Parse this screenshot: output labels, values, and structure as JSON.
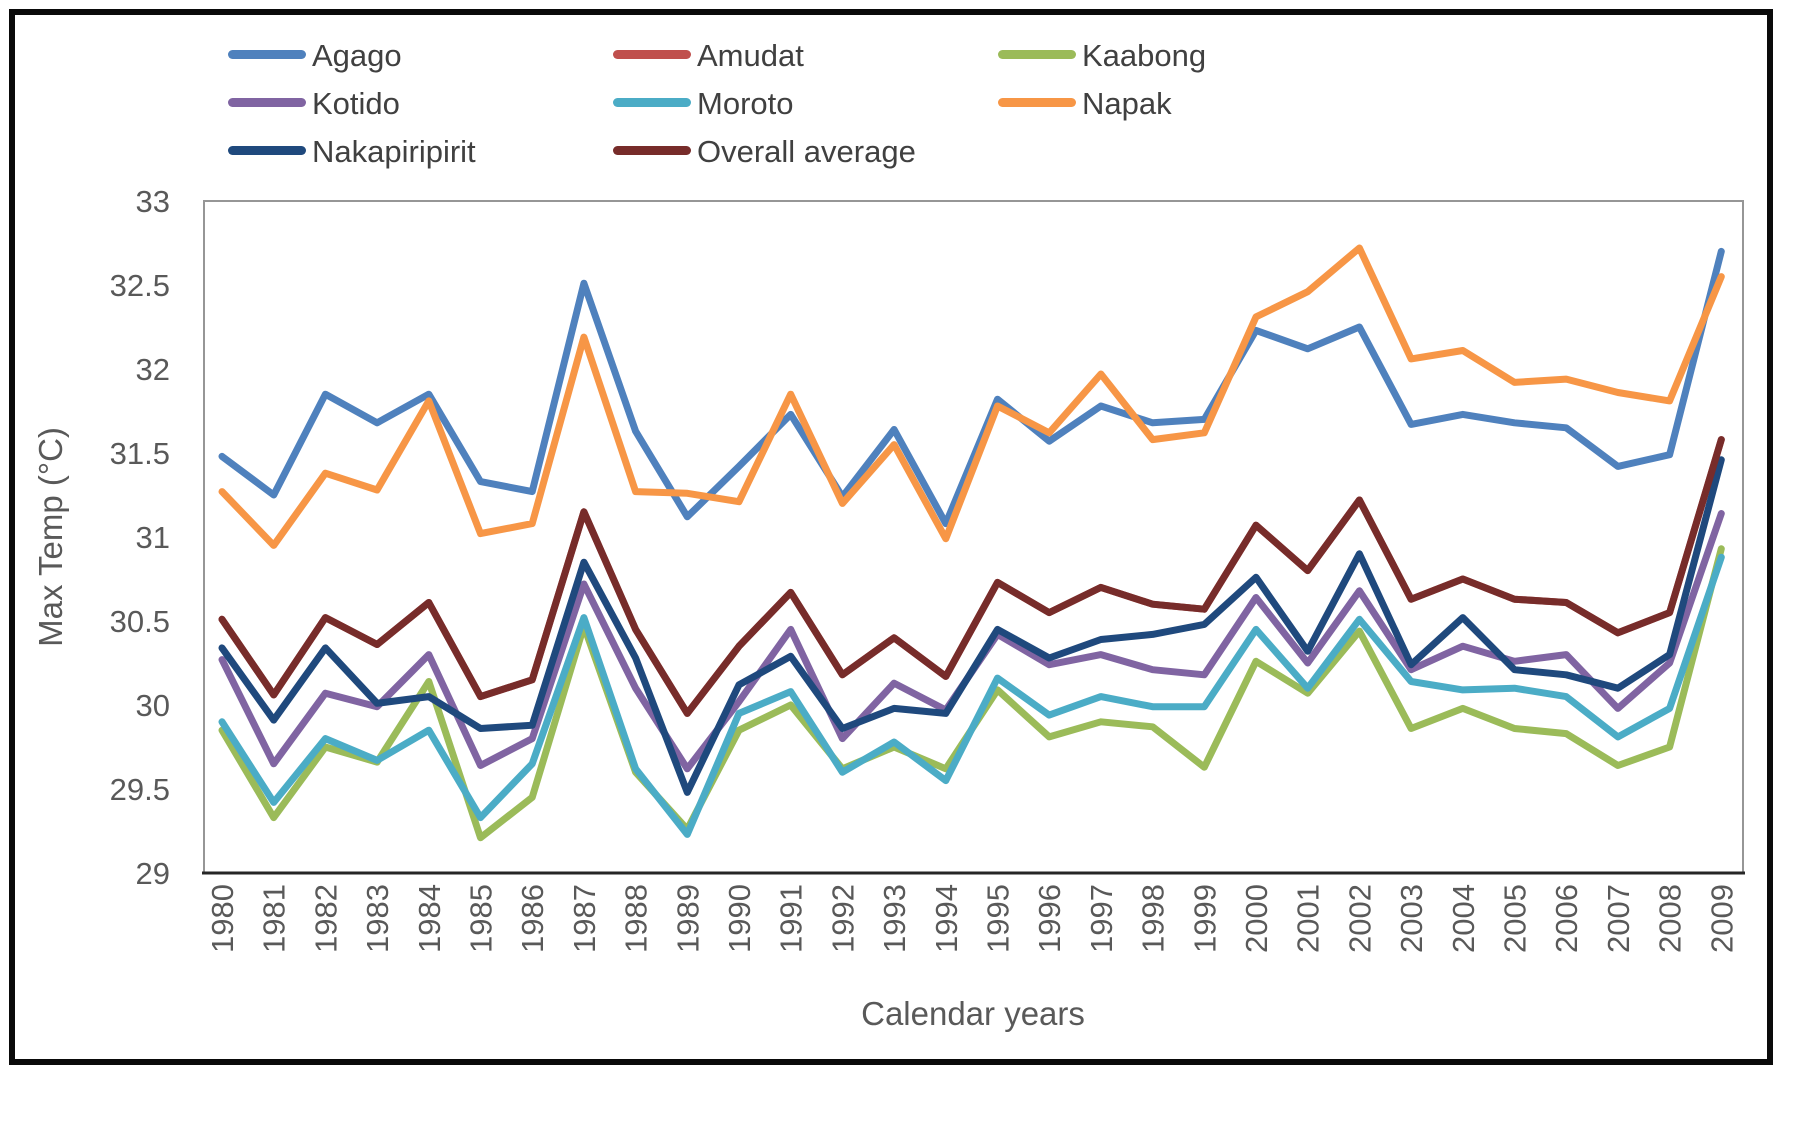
{
  "chart_data": {
    "type": "line",
    "title": "",
    "xlabel": "Calendar years",
    "ylabel": "Max Temp (°C)",
    "ylim": [
      29,
      33
    ],
    "y_tick_step": 0.5,
    "y_ticks": [
      "33",
      "32.5",
      "32",
      "31.5",
      "31",
      "30.5",
      "30",
      "29.5",
      "29"
    ],
    "grid": false,
    "legend_position": "top",
    "categories": [
      "1980",
      "1981",
      "1982",
      "1983",
      "1984",
      "1985",
      "1986",
      "1987",
      "1988",
      "1989",
      "1990",
      "1991",
      "1992",
      "1993",
      "1994",
      "1995",
      "1996",
      "1997",
      "1998",
      "1999",
      "2000",
      "2001",
      "2002",
      "2003",
      "2004",
      "2005",
      "2006",
      "2007",
      "2008",
      "2009"
    ],
    "series": [
      {
        "name": "Agago",
        "color": "#4F81BD",
        "values": [
          31.48,
          31.25,
          31.85,
          31.68,
          31.85,
          31.33,
          31.27,
          32.51,
          31.63,
          31.12,
          31.42,
          31.73,
          31.24,
          31.64,
          31.08,
          31.82,
          31.57,
          31.78,
          31.68,
          31.7,
          32.23,
          32.12,
          32.25,
          31.67,
          31.73,
          31.68,
          31.65,
          31.42,
          31.49,
          32.7
        ]
      },
      {
        "name": "Amudat",
        "color": "#C0504D",
        "values": [
          30.51,
          30.06,
          30.52,
          30.36,
          30.61,
          30.05,
          30.15,
          31.15,
          30.45,
          29.95,
          30.35,
          30.67,
          30.18,
          30.4,
          30.17,
          30.73,
          30.55,
          30.7,
          30.6,
          30.57,
          31.07,
          30.8,
          31.22,
          30.63,
          30.75,
          30.63,
          30.61,
          30.43,
          30.55,
          31.58
        ]
      },
      {
        "name": "Kaabong",
        "color": "#9BBB59",
        "values": [
          29.85,
          29.33,
          29.75,
          29.66,
          30.14,
          29.21,
          29.45,
          30.47,
          29.6,
          29.26,
          29.85,
          30.0,
          29.62,
          29.75,
          29.62,
          30.09,
          29.81,
          29.9,
          29.87,
          29.63,
          30.26,
          30.07,
          30.44,
          29.86,
          29.98,
          29.86,
          29.83,
          29.64,
          29.75,
          30.93
        ]
      },
      {
        "name": "Kotido",
        "color": "#8064A2",
        "values": [
          30.27,
          29.65,
          30.07,
          29.99,
          30.3,
          29.64,
          29.8,
          30.72,
          30.1,
          29.62,
          30.02,
          30.45,
          29.8,
          30.13,
          29.97,
          30.42,
          30.24,
          30.3,
          30.21,
          30.18,
          30.64,
          30.25,
          30.68,
          30.21,
          30.35,
          30.26,
          30.3,
          29.98,
          30.25,
          31.14
        ]
      },
      {
        "name": "Moroto",
        "color": "#4BACC6",
        "values": [
          29.9,
          29.42,
          29.8,
          29.67,
          29.85,
          29.33,
          29.65,
          30.52,
          29.62,
          29.23,
          29.95,
          30.08,
          29.6,
          29.78,
          29.55,
          30.16,
          29.94,
          30.05,
          29.99,
          29.99,
          30.45,
          30.1,
          30.51,
          30.14,
          30.09,
          30.1,
          30.05,
          29.81,
          29.98,
          30.88
        ]
      },
      {
        "name": "Napak",
        "color": "#F79646",
        "values": [
          31.27,
          30.95,
          31.38,
          31.28,
          31.81,
          31.02,
          31.08,
          32.19,
          31.27,
          31.26,
          31.21,
          31.85,
          31.2,
          31.55,
          30.99,
          31.78,
          31.62,
          31.97,
          31.58,
          31.62,
          32.31,
          32.46,
          32.72,
          32.06,
          32.11,
          31.92,
          31.94,
          31.86,
          31.81,
          32.55
        ]
      },
      {
        "name": "Nakapiripirit",
        "color": "#1F497D",
        "values": [
          30.34,
          29.91,
          30.34,
          30.01,
          30.05,
          29.86,
          29.88,
          30.85,
          30.28,
          29.48,
          30.12,
          30.29,
          29.86,
          29.98,
          29.95,
          30.45,
          30.28,
          30.39,
          30.42,
          30.48,
          30.76,
          30.32,
          30.9,
          30.24,
          30.52,
          30.21,
          30.18,
          30.1,
          30.3,
          31.46
        ]
      },
      {
        "name": "Overall average",
        "color": "#772C2A",
        "values": [
          30.51,
          30.06,
          30.52,
          30.36,
          30.61,
          30.05,
          30.15,
          31.15,
          30.45,
          29.95,
          30.35,
          30.67,
          30.18,
          30.4,
          30.17,
          30.73,
          30.55,
          30.7,
          30.6,
          30.57,
          31.07,
          30.8,
          31.22,
          30.63,
          30.75,
          30.63,
          30.61,
          30.43,
          30.55,
          31.58
        ]
      }
    ]
  },
  "style_colors": {
    "axis_text": "#595959",
    "legend_text": "#404040",
    "plot_border": "#969696",
    "bottom_axis": "#262626",
    "figure_border": "#0a0a0a"
  }
}
